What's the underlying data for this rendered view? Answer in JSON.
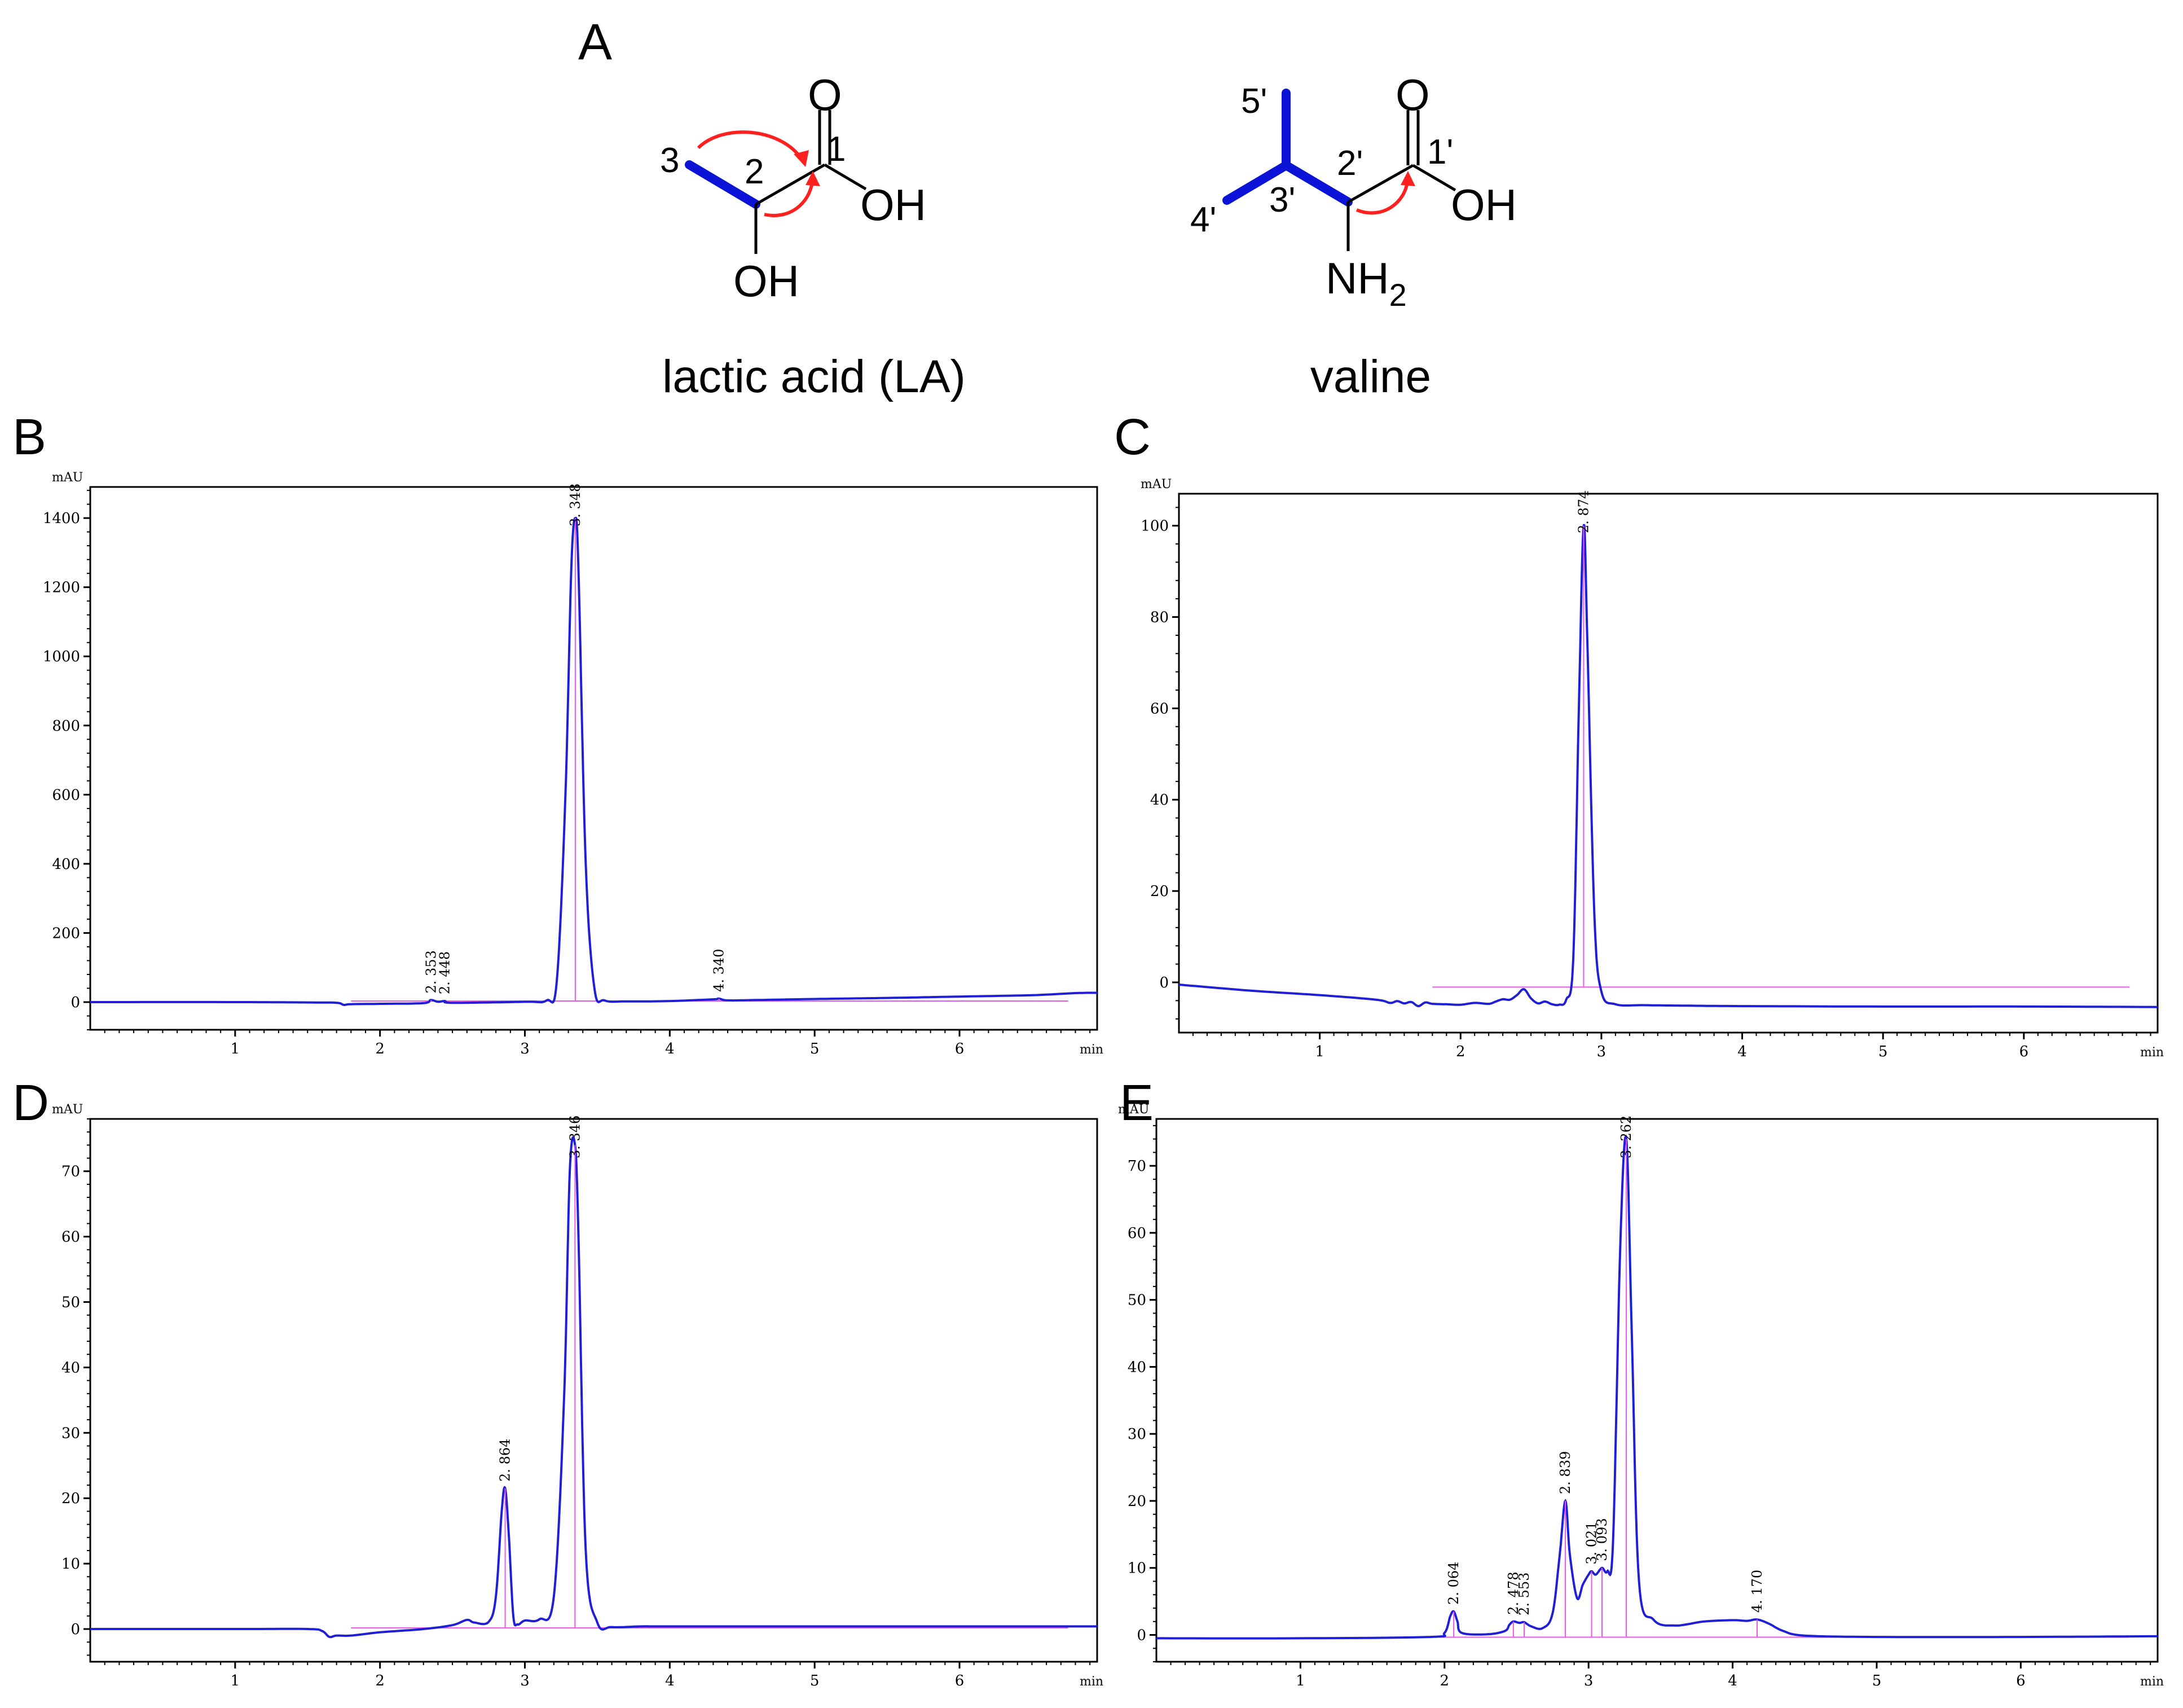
{
  "panels": {
    "A": "A",
    "B": "B",
    "C": "C",
    "D": "D",
    "E": "E"
  },
  "structures": {
    "lactic_acid": {
      "name": "lactic acid (LA)",
      "carbon_labels": [
        "1",
        "2",
        "3"
      ],
      "atoms": {
        "oxygen": "O",
        "hydroxyl_acid": "OH",
        "hydroxyl_alpha": "OH"
      }
    },
    "valine": {
      "name": "valine",
      "carbon_labels": [
        "1'",
        "2'",
        "3'",
        "4'",
        "5'"
      ],
      "atoms": {
        "oxygen": "O",
        "hydroxyl_acid": "OH",
        "amine": "NH",
        "amine_subscript": "2"
      }
    },
    "colors": {
      "bond_highlight": "#0b14d6",
      "hmbc_arrow": "#ff2020",
      "trace": "#1f1fd6",
      "baseline": "#ee55ee"
    }
  },
  "chart_data": [
    {
      "panel": "B",
      "type": "line",
      "ylabel": "mAU",
      "xlabel": "min",
      "xlim": [
        0,
        6.95
      ],
      "ylim": [
        -80,
        1490
      ],
      "yticks": [
        0,
        200,
        400,
        600,
        800,
        1000,
        1200,
        1400
      ],
      "xticks": [
        1,
        2,
        3,
        4,
        5,
        6
      ],
      "series": [
        {
          "x": [
            0.0,
            1.0,
            1.5,
            1.7,
            1.75,
            1.8,
            2.0,
            2.3,
            2.35,
            2.4,
            2.448,
            2.5,
            3.0,
            3.15,
            3.22,
            3.28,
            3.32,
            3.348,
            3.37,
            3.42,
            3.48,
            3.55,
            3.7,
            4.0,
            4.3,
            4.34,
            4.4,
            4.6,
            5.0,
            5.5,
            6.0,
            6.5,
            6.8,
            6.95
          ],
          "y": [
            0,
            0,
            -1,
            -2,
            -8,
            -6,
            -5,
            -3,
            6,
            1,
            3,
            -2,
            1,
            5,
            60,
            600,
            1250,
            1400,
            1250,
            400,
            40,
            5,
            2,
            3,
            8,
            10,
            5,
            6,
            9,
            12,
            16,
            20,
            26,
            27
          ]
        }
      ],
      "peaks": [
        {
          "rt": 2.353,
          "label": "2. 353"
        },
        {
          "rt": 2.448,
          "label": "2. 448"
        },
        {
          "rt": 3.348,
          "label": "3. 348"
        },
        {
          "rt": 4.34,
          "label": "4. 340"
        }
      ]
    },
    {
      "panel": "C",
      "type": "line",
      "ylabel": "mAU",
      "xlabel": "min",
      "xlim": [
        0,
        6.95
      ],
      "ylim": [
        -11,
        107
      ],
      "yticks": [
        0,
        20,
        40,
        60,
        80,
        100
      ],
      "xticks": [
        1,
        2,
        3,
        4,
        5,
        6
      ],
      "series": [
        {
          "x": [
            0.0,
            0.5,
            1.0,
            1.4,
            1.5,
            1.55,
            1.6,
            1.65,
            1.7,
            1.75,
            1.8,
            1.9,
            2.0,
            2.1,
            2.2,
            2.25,
            2.3,
            2.35,
            2.4,
            2.45,
            2.5,
            2.55,
            2.6,
            2.65,
            2.7,
            2.75,
            2.8,
            2.84,
            2.874,
            2.9,
            2.95,
            3.0,
            3.1,
            3.3,
            3.6,
            4.0,
            5.0,
            6.0,
            6.95
          ],
          "y": [
            -0.5,
            -1.8,
            -2.8,
            -3.8,
            -4.5,
            -4.1,
            -4.6,
            -4.3,
            -5.2,
            -4.4,
            -4.7,
            -4.8,
            -4.9,
            -4.5,
            -4.7,
            -4.2,
            -3.7,
            -3.8,
            -2.8,
            -1.5,
            -3.5,
            -4.6,
            -4.2,
            -4.8,
            -4.9,
            -3.8,
            5,
            60,
            100,
            75,
            15,
            -2,
            -4.8,
            -5.0,
            -5.1,
            -5.2,
            -5.3,
            -5.3,
            -5.4
          ]
        }
      ],
      "peaks": [
        {
          "rt": 2.874,
          "label": "2. 874"
        }
      ]
    },
    {
      "panel": "D",
      "type": "line",
      "ylabel": "mAU",
      "xlabel": "min",
      "xlim": [
        0,
        6.95
      ],
      "ylim": [
        -5,
        78
      ],
      "yticks": [
        0,
        10,
        20,
        30,
        40,
        50,
        60,
        70
      ],
      "xticks": [
        1,
        2,
        3,
        4,
        5,
        6
      ],
      "series": [
        {
          "x": [
            0.0,
            1.0,
            1.5,
            1.6,
            1.65,
            1.7,
            1.8,
            2.0,
            2.3,
            2.5,
            2.6,
            2.65,
            2.75,
            2.8,
            2.84,
            2.864,
            2.89,
            2.92,
            2.95,
            3.0,
            3.1,
            3.2,
            3.27,
            3.31,
            3.346,
            3.37,
            3.42,
            3.5,
            3.6,
            3.8,
            4.0,
            5.0,
            6.0,
            6.95
          ],
          "y": [
            0,
            0,
            0,
            -0.3,
            -1.2,
            -1.0,
            -1.0,
            -0.5,
            0,
            0.6,
            1.4,
            1.0,
            1.1,
            5,
            18,
            21.5,
            14,
            2,
            0.7,
            1.3,
            1.5,
            5,
            35,
            70,
            74,
            60,
            12,
            1,
            0.3,
            0.4,
            0.4,
            0.4,
            0.4,
            0.4
          ]
        }
      ],
      "peaks": [
        {
          "rt": 2.864,
          "label": "2. 864"
        },
        {
          "rt": 3.346,
          "label": "3. 346"
        }
      ]
    },
    {
      "panel": "E",
      "type": "line",
      "ylabel": "mAU",
      "xlabel": "min",
      "xlim": [
        0,
        6.95
      ],
      "ylim": [
        -4,
        77
      ],
      "yticks": [
        0,
        10,
        20,
        30,
        40,
        50,
        60,
        70
      ],
      "xticks": [
        1,
        2,
        3,
        4,
        5,
        6
      ],
      "series": [
        {
          "x": [
            0.0,
            1.0,
            1.9,
            2.0,
            2.04,
            2.064,
            2.09,
            2.12,
            2.3,
            2.42,
            2.45,
            2.478,
            2.52,
            2.553,
            2.6,
            2.68,
            2.75,
            2.8,
            2.839,
            2.87,
            2.92,
            2.96,
            3.0,
            3.021,
            3.05,
            3.093,
            3.13,
            3.17,
            3.22,
            3.262,
            3.3,
            3.35,
            3.45,
            3.6,
            3.8,
            4.0,
            4.1,
            4.17,
            4.25,
            4.35,
            4.5,
            5.0,
            6.0,
            6.95
          ],
          "y": [
            -0.5,
            -0.5,
            -0.3,
            0.3,
            2.8,
            3.5,
            2.0,
            0.3,
            0.1,
            0.6,
            1.5,
            2.0,
            1.8,
            1.9,
            1.3,
            1.0,
            3.2,
            12,
            20,
            12,
            5.5,
            7.5,
            9,
            9.5,
            9,
            10,
            9.5,
            14,
            58,
            74,
            45,
            8,
            2.3,
            1.4,
            2.0,
            2.2,
            2.1,
            2.3,
            1.7,
            0.6,
            -0.1,
            -0.3,
            -0.3,
            -0.2
          ]
        }
      ],
      "peaks": [
        {
          "rt": 2.064,
          "label": "2. 064"
        },
        {
          "rt": 2.478,
          "label": "2. 478"
        },
        {
          "rt": 2.553,
          "label": "2. 553"
        },
        {
          "rt": 2.839,
          "label": "2. 839"
        },
        {
          "rt": 3.021,
          "label": "3. 021"
        },
        {
          "rt": 3.093,
          "label": "3. 093"
        },
        {
          "rt": 3.262,
          "label": "3. 262"
        },
        {
          "rt": 4.17,
          "label": "4. 170"
        }
      ]
    }
  ]
}
